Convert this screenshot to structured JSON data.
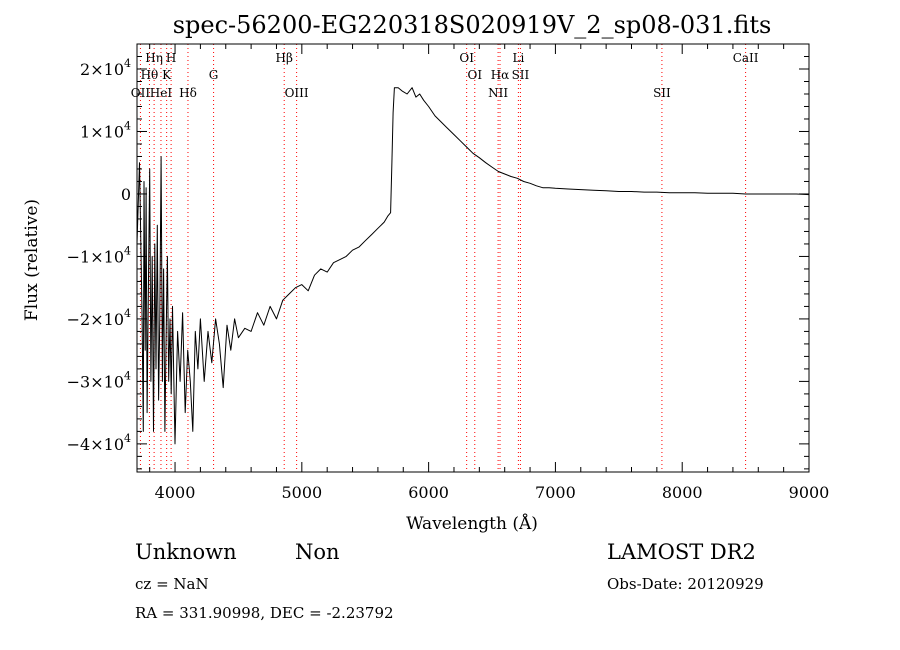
{
  "chart_data": {
    "type": "line",
    "title": "spec-56200-EG220318S020919V_2_sp08-031.fits",
    "xlabel": "Wavelength (Å)",
    "ylabel": "Flux (relative)",
    "xlim": [
      3700,
      9000
    ],
    "ylim": [
      -44500,
      24000
    ],
    "x_ticks": [
      4000,
      5000,
      6000,
      7000,
      8000,
      9000
    ],
    "y_ticks": [
      {
        "value": 20000,
        "mant": "2",
        "exp": "4"
      },
      {
        "value": 10000,
        "mant": "1",
        "exp": "4"
      },
      {
        "value": 0,
        "mant": "0",
        "exp": ""
      },
      {
        "value": -10000,
        "mant": "−1",
        "exp": "4"
      },
      {
        "value": -20000,
        "mant": "−2",
        "exp": "4"
      },
      {
        "value": -30000,
        "mant": "−3",
        "exp": "4"
      },
      {
        "value": -40000,
        "mant": "−4",
        "exp": "4"
      }
    ],
    "line_color": "#000000",
    "marker_color": "#ff0000",
    "lines": [
      {
        "label": "OII",
        "x": 3727,
        "row": 2
      },
      {
        "label": "Hη",
        "x": 3835,
        "row": 0
      },
      {
        "label": "Hθ",
        "x": 3798,
        "row": 1
      },
      {
        "label": "H",
        "x": 3969,
        "row": 0
      },
      {
        "label": "K",
        "x": 3934,
        "row": 1
      },
      {
        "label": "HeI",
        "x": 3889,
        "row": 2
      },
      {
        "label": "Hδ",
        "x": 4102,
        "row": 2
      },
      {
        "label": "G",
        "x": 4304,
        "row": 1
      },
      {
        "label": "Hβ",
        "x": 4861,
        "row": 0
      },
      {
        "label": "OIII",
        "x": 4959,
        "row": 2
      },
      {
        "label": "OI",
        "x": 6300,
        "row": 0
      },
      {
        "label": "OI",
        "x": 6364,
        "row": 1
      },
      {
        "label": "Hα",
        "x": 6563,
        "row": 1
      },
      {
        "label": "NII",
        "x": 6548,
        "row": 2
      },
      {
        "label": "Li",
        "x": 6708,
        "row": 0
      },
      {
        "label": "SII",
        "x": 6724,
        "row": 1
      },
      {
        "label": "SII",
        "x": 7840,
        "row": 2
      },
      {
        "label": "CaII",
        "x": 8500,
        "row": 0
      }
    ],
    "spectrum": [
      [
        3700,
        -8000
      ],
      [
        3720,
        5000
      ],
      [
        3740,
        -20000
      ],
      [
        3750,
        -38000
      ],
      [
        3755,
        2000
      ],
      [
        3765,
        -25000
      ],
      [
        3772,
        1000
      ],
      [
        3780,
        -35000
      ],
      [
        3790,
        -15000
      ],
      [
        3800,
        4000
      ],
      [
        3810,
        -30000
      ],
      [
        3820,
        -10000
      ],
      [
        3830,
        -38000
      ],
      [
        3840,
        -8000
      ],
      [
        3850,
        -28000
      ],
      [
        3860,
        -5000
      ],
      [
        3870,
        -33000
      ],
      [
        3880,
        -20000
      ],
      [
        3890,
        6000
      ],
      [
        3900,
        -30000
      ],
      [
        3910,
        -12000
      ],
      [
        3920,
        -38000
      ],
      [
        3930,
        -22000
      ],
      [
        3940,
        -10000
      ],
      [
        3950,
        -30000
      ],
      [
        3960,
        -20000
      ],
      [
        3970,
        -32000
      ],
      [
        3980,
        -18000
      ],
      [
        4000,
        -40000
      ],
      [
        4020,
        -22000
      ],
      [
        4040,
        -30000
      ],
      [
        4060,
        -19000
      ],
      [
        4080,
        -35000
      ],
      [
        4100,
        -25000
      ],
      [
        4120,
        -30000
      ],
      [
        4140,
        -38000
      ],
      [
        4160,
        -22000
      ],
      [
        4180,
        -28000
      ],
      [
        4200,
        -20000
      ],
      [
        4230,
        -30000
      ],
      [
        4260,
        -22000
      ],
      [
        4290,
        -27000
      ],
      [
        4320,
        -20000
      ],
      [
        4350,
        -24000
      ],
      [
        4380,
        -31000
      ],
      [
        4410,
        -21000
      ],
      [
        4440,
        -25000
      ],
      [
        4470,
        -20000
      ],
      [
        4500,
        -23000
      ],
      [
        4550,
        -21500
      ],
      [
        4600,
        -22000
      ],
      [
        4650,
        -19000
      ],
      [
        4700,
        -21000
      ],
      [
        4750,
        -18000
      ],
      [
        4800,
        -20000
      ],
      [
        4850,
        -17000
      ],
      [
        4900,
        -16000
      ],
      [
        4950,
        -15000
      ],
      [
        5000,
        -14500
      ],
      [
        5050,
        -15500
      ],
      [
        5100,
        -13000
      ],
      [
        5150,
        -12000
      ],
      [
        5200,
        -12500
      ],
      [
        5250,
        -11000
      ],
      [
        5300,
        -10500
      ],
      [
        5350,
        -10000
      ],
      [
        5400,
        -9000
      ],
      [
        5450,
        -8500
      ],
      [
        5500,
        -7500
      ],
      [
        5550,
        -6500
      ],
      [
        5600,
        -5500
      ],
      [
        5650,
        -4500
      ],
      [
        5680,
        -3500
      ],
      [
        5700,
        -3000
      ],
      [
        5710,
        5000
      ],
      [
        5720,
        13000
      ],
      [
        5730,
        17000
      ],
      [
        5760,
        17000
      ],
      [
        5790,
        16500
      ],
      [
        5830,
        16000
      ],
      [
        5870,
        17000
      ],
      [
        5900,
        15500
      ],
      [
        5930,
        16000
      ],
      [
        5960,
        15000
      ],
      [
        6000,
        14000
      ],
      [
        6050,
        12500
      ],
      [
        6100,
        11500
      ],
      [
        6150,
        10500
      ],
      [
        6200,
        9500
      ],
      [
        6250,
        8500
      ],
      [
        6300,
        7500
      ],
      [
        6350,
        6500
      ],
      [
        6400,
        5800
      ],
      [
        6450,
        5000
      ],
      [
        6500,
        4300
      ],
      [
        6550,
        3600
      ],
      [
        6600,
        3200
      ],
      [
        6650,
        2800
      ],
      [
        6700,
        2500
      ],
      [
        6750,
        2000
      ],
      [
        6800,
        1700
      ],
      [
        6850,
        1300
      ],
      [
        6900,
        1000
      ],
      [
        6950,
        1000
      ],
      [
        7000,
        900
      ],
      [
        7100,
        800
      ],
      [
        7200,
        700
      ],
      [
        7300,
        600
      ],
      [
        7400,
        500
      ],
      [
        7500,
        400
      ],
      [
        7600,
        400
      ],
      [
        7700,
        300
      ],
      [
        7800,
        300
      ],
      [
        7900,
        200
      ],
      [
        8000,
        200
      ],
      [
        8100,
        200
      ],
      [
        8200,
        100
      ],
      [
        8300,
        100
      ],
      [
        8400,
        100
      ],
      [
        8500,
        0
      ],
      [
        8600,
        0
      ],
      [
        8700,
        0
      ],
      [
        8800,
        0
      ],
      [
        8900,
        0
      ],
      [
        9000,
        -100
      ]
    ]
  },
  "info": {
    "class": "Unknown",
    "subclass": "Non",
    "survey": "LAMOST DR2",
    "cz": "cz = NaN",
    "obs_date": "Obs-Date: 20120929",
    "radec": "RA = 331.90998, DEC =  -2.23792"
  }
}
